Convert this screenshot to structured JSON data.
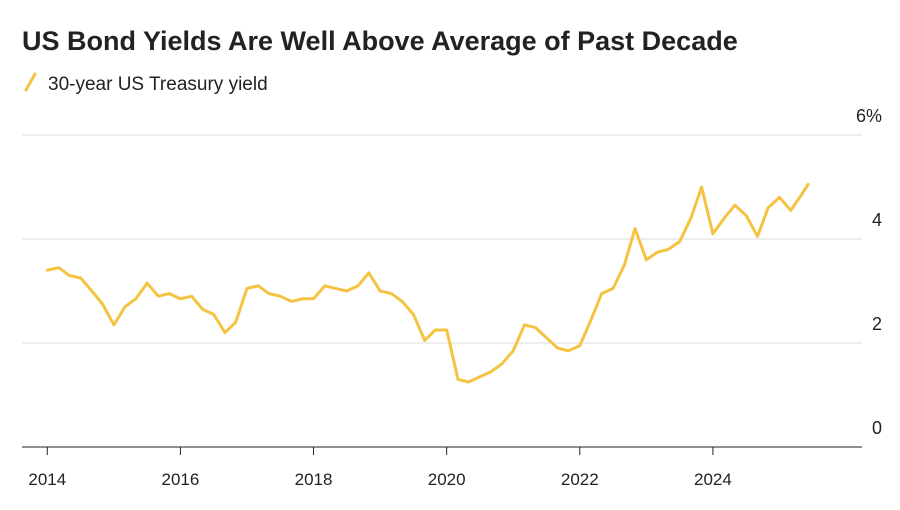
{
  "chart_data": {
    "type": "line",
    "title": "US Bond Yields Are Well Above Average of Past Decade",
    "x": [
      2014.0,
      2014.17,
      2014.33,
      2014.5,
      2014.67,
      2014.83,
      2015.0,
      2015.17,
      2015.33,
      2015.5,
      2015.67,
      2015.83,
      2016.0,
      2016.17,
      2016.33,
      2016.5,
      2016.67,
      2016.83,
      2017.0,
      2017.17,
      2017.33,
      2017.5,
      2017.67,
      2017.83,
      2018.0,
      2018.17,
      2018.33,
      2018.5,
      2018.67,
      2018.83,
      2019.0,
      2019.17,
      2019.33,
      2019.5,
      2019.67,
      2019.83,
      2020.0,
      2020.17,
      2020.33,
      2020.5,
      2020.67,
      2020.83,
      2021.0,
      2021.17,
      2021.33,
      2021.5,
      2021.67,
      2021.83,
      2022.0,
      2022.17,
      2022.33,
      2022.5,
      2022.67,
      2022.83,
      2023.0,
      2023.17,
      2023.33,
      2023.5,
      2023.67,
      2023.83,
      2024.0,
      2024.17,
      2024.33,
      2024.5,
      2024.67,
      2024.83,
      2025.0,
      2025.17,
      2025.33,
      2025.43
    ],
    "series": [
      {
        "name": "30-year US Treasury yield",
        "color": "#f5c342",
        "values": [
          3.4,
          3.45,
          3.3,
          3.25,
          3.0,
          2.75,
          2.35,
          2.7,
          2.85,
          3.15,
          2.9,
          2.95,
          2.85,
          2.9,
          2.65,
          2.55,
          2.2,
          2.4,
          3.05,
          3.1,
          2.95,
          2.9,
          2.8,
          2.85,
          2.85,
          3.1,
          3.05,
          3.0,
          3.1,
          3.35,
          3.0,
          2.95,
          2.8,
          2.55,
          2.05,
          2.25,
          2.25,
          1.3,
          1.25,
          1.35,
          1.45,
          1.6,
          1.85,
          2.35,
          2.3,
          2.1,
          1.9,
          1.85,
          1.95,
          2.45,
          2.95,
          3.05,
          3.5,
          4.2,
          3.6,
          3.75,
          3.8,
          3.95,
          4.4,
          5.0,
          4.1,
          4.4,
          4.65,
          4.45,
          4.05,
          4.6,
          4.8,
          4.55,
          4.85,
          5.05
        ]
      }
    ],
    "xlim": [
      2013.62,
      2026.24
    ],
    "xticks": [
      2014,
      2016,
      2018,
      2020,
      2022,
      2024
    ],
    "ylim": [
      0,
      6
    ],
    "yticks": [
      0,
      2,
      4,
      {
        "value": 6,
        "label": "6%"
      }
    ],
    "grid": true
  }
}
